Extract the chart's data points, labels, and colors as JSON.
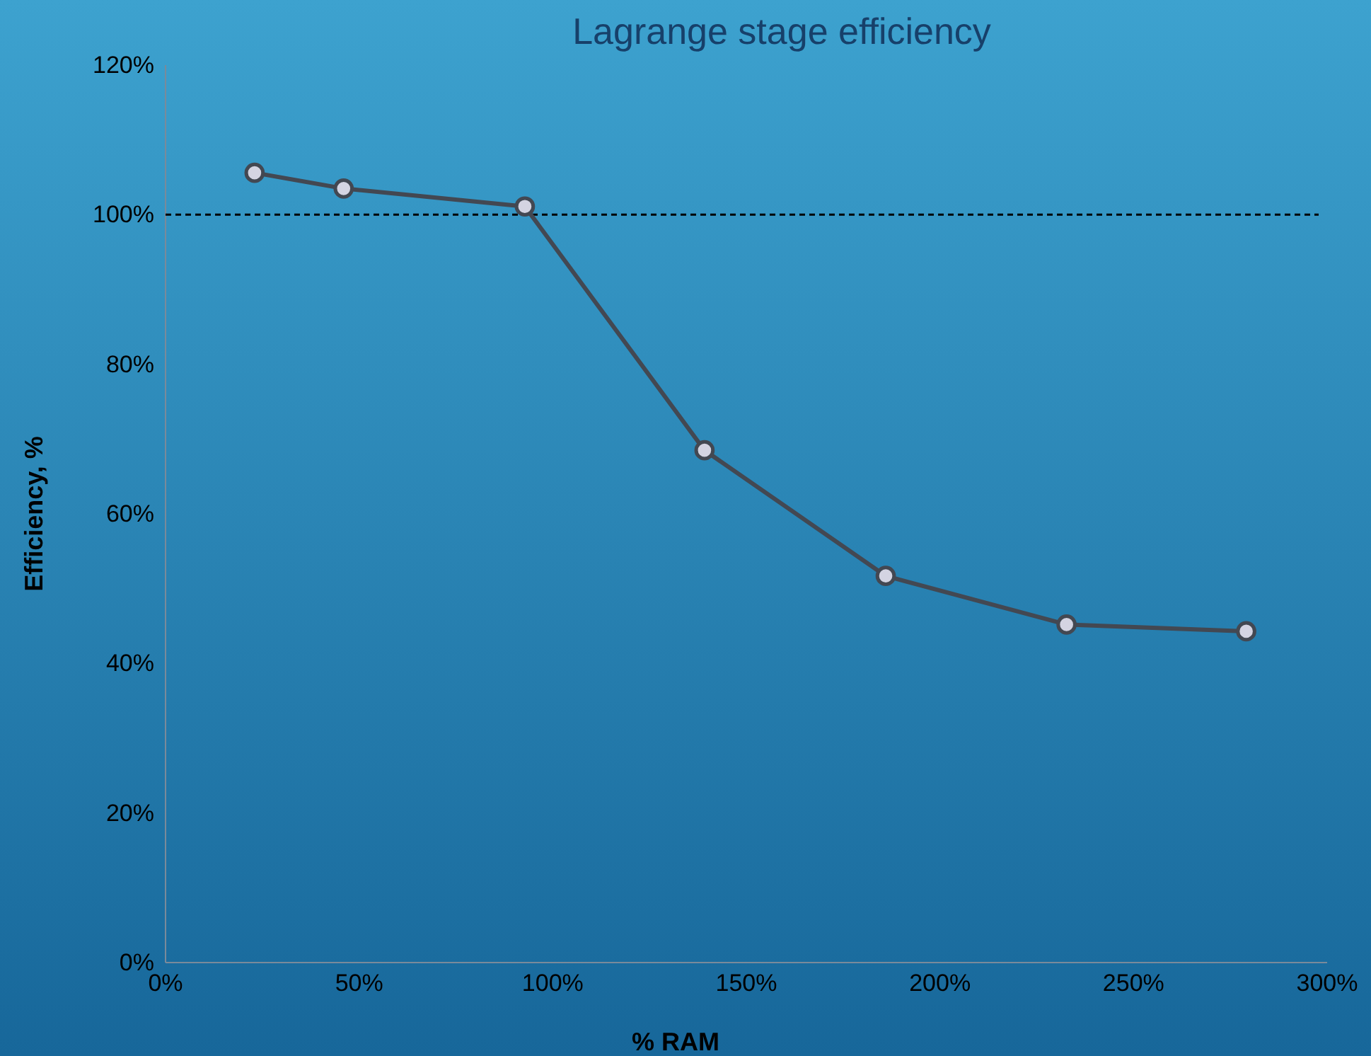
{
  "chart_data": {
    "type": "line",
    "title": "Lagrange stage efficiency",
    "xlabel": "% RAM",
    "ylabel": "Efficiency, %",
    "x": [
      23,
      46,
      92.8,
      139.2,
      186,
      232.7,
      279.1
    ],
    "series": [
      {
        "color": "#434852",
        "values": [
          105.6,
          103.5,
          101.1,
          68.5,
          51.7,
          45.2,
          44.3
        ]
      }
    ],
    "marker": "circle",
    "line_style": "solid",
    "grid": false,
    "xlim": [
      0,
      300
    ],
    "xticks": [
      {
        "value": 0,
        "label": "0%"
      },
      {
        "value": 50,
        "label": "50%"
      },
      {
        "value": 100,
        "label": "100%"
      },
      {
        "value": 150,
        "label": "150%"
      },
      {
        "value": 200,
        "label": "200%"
      },
      {
        "value": 250,
        "label": "250%"
      },
      {
        "value": 300,
        "label": "300%"
      }
    ],
    "ylim": [
      0,
      120
    ],
    "yticks": [
      {
        "value": 0,
        "label": "0%"
      },
      {
        "value": 20,
        "label": "20%"
      },
      {
        "value": 40,
        "label": "40%"
      },
      {
        "value": 60,
        "label": "60%"
      },
      {
        "value": 80,
        "label": "80%"
      },
      {
        "value": 100,
        "label": "100%"
      },
      {
        "value": 120,
        "label": "120%"
      }
    ],
    "ref_lines": [
      {
        "axis": "y",
        "value": 100,
        "color": "#000000",
        "line_style": "dashed"
      }
    ]
  }
}
